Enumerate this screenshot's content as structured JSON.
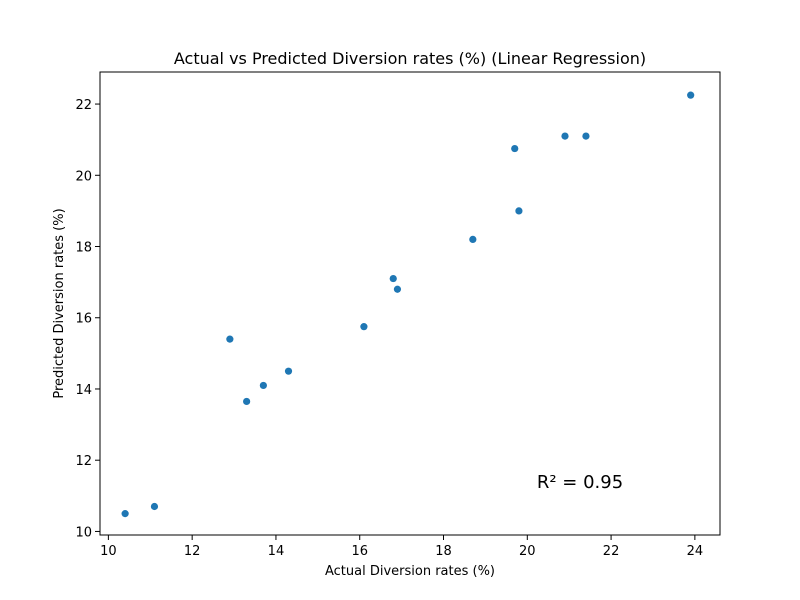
{
  "chart_data": {
    "type": "scatter",
    "title": "Actual vs Predicted Diversion rates (%) (Linear Regression)",
    "xlabel": "Actual Diversion rates (%)",
    "ylabel": "Predicted Diversion rates (%)",
    "xlim": [
      9.8,
      24.6
    ],
    "ylim": [
      9.9,
      22.9
    ],
    "xticks": [
      10,
      12,
      14,
      16,
      18,
      20,
      22,
      24
    ],
    "yticks": [
      10,
      12,
      14,
      16,
      18,
      20,
      22
    ],
    "grid": false,
    "marker_color": "#1f77b4",
    "annotation": "R² = 0.95",
    "points": [
      {
        "x": 10.4,
        "y": 10.5
      },
      {
        "x": 11.1,
        "y": 10.7
      },
      {
        "x": 12.9,
        "y": 15.4
      },
      {
        "x": 13.3,
        "y": 13.65
      },
      {
        "x": 13.7,
        "y": 14.1
      },
      {
        "x": 14.3,
        "y": 14.5
      },
      {
        "x": 16.1,
        "y": 15.75
      },
      {
        "x": 16.8,
        "y": 17.1
      },
      {
        "x": 16.9,
        "y": 16.8
      },
      {
        "x": 18.7,
        "y": 18.2
      },
      {
        "x": 19.7,
        "y": 20.75
      },
      {
        "x": 19.8,
        "y": 19.0
      },
      {
        "x": 20.9,
        "y": 21.1
      },
      {
        "x": 21.4,
        "y": 21.1
      },
      {
        "x": 23.9,
        "y": 22.25
      }
    ]
  }
}
